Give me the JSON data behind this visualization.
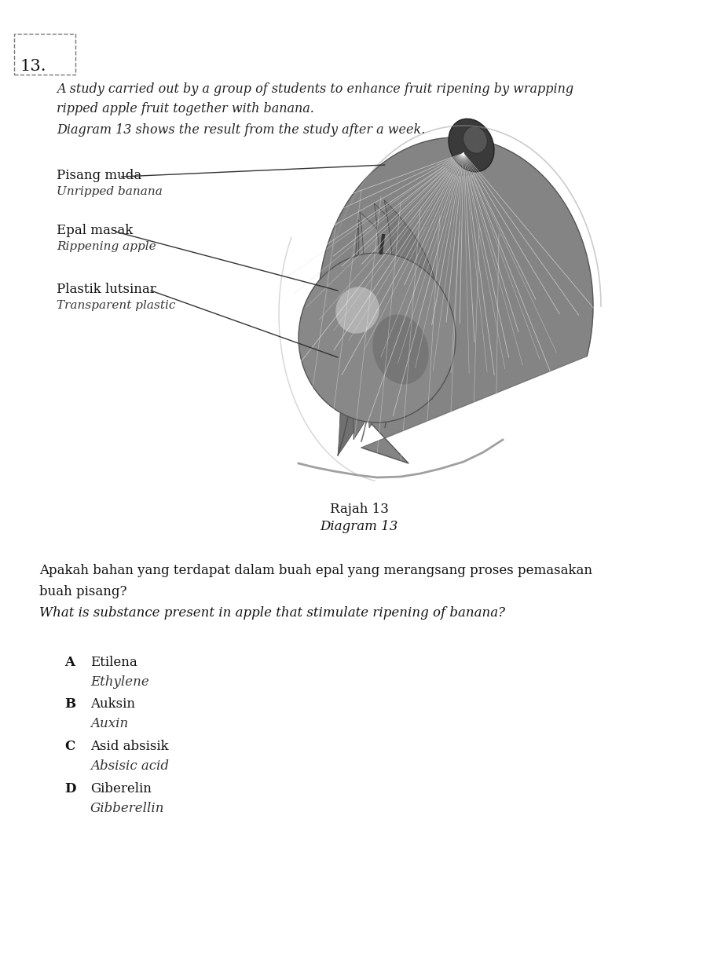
{
  "background_color": "#ffffff",
  "question_number": "13.",
  "intro_line1": "A study carried out by a group of students to enhance fruit ripening by wrapping",
  "intro_line2": "ripped apple fruit together with banana.",
  "intro_line3": "Diagram 13 shows the result from the study after a week.",
  "label1_malay": "Pisang muda",
  "label1_english": "Unripped banana",
  "label2_malay": "Epal masak",
  "label2_english": "Rippening apple",
  "label3_malay": "Plastik lutsinar",
  "label3_english": "Transparent plastic",
  "caption_malay": "Rajah 13",
  "caption_english": "Diagram 13",
  "question_malay_line1": "Apakah bahan yang terdapat dalam buah epal yang merangsang proses pemasakan",
  "question_malay_line2": "buah pisang?",
  "question_english": "What is substance present in apple that stimulate ripening of banana?",
  "options": [
    {
      "letter": "A",
      "malay": "Etilena",
      "english": "Ethylene"
    },
    {
      "letter": "B",
      "malay": "Auksin",
      "english": "Auxin"
    },
    {
      "letter": "C",
      "malay": "Asid absisik",
      "english": "Absisic acid"
    },
    {
      "letter": "D",
      "malay": "Giberelin",
      "english": "Gibberellin"
    }
  ]
}
